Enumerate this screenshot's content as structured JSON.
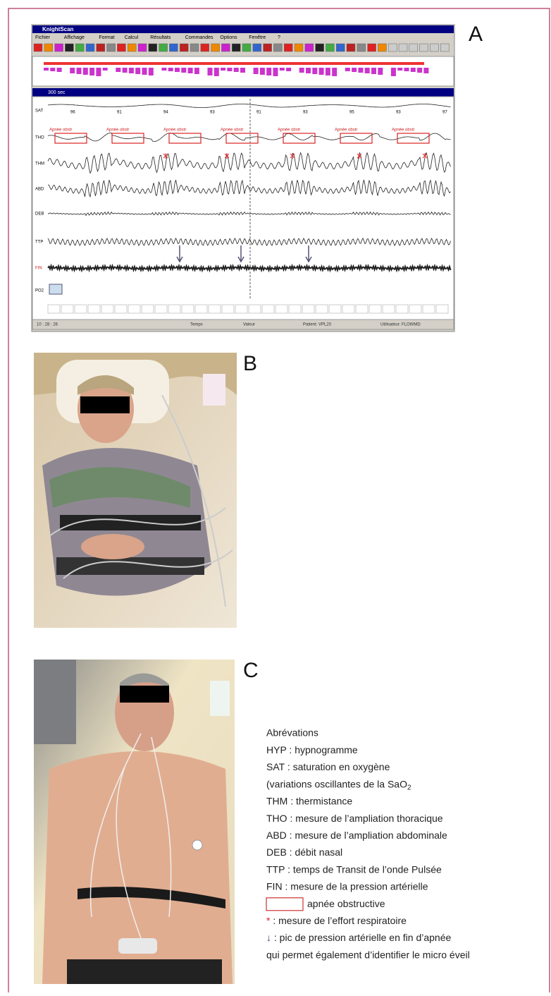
{
  "panels": [
    {
      "label": "A"
    },
    {
      "label": "B"
    },
    {
      "label": "C"
    }
  ],
  "screenshot": {
    "app_title": "KnightScan",
    "menu": [
      "Fichier",
      "Affichage",
      "Format",
      "Calcul",
      "Résultats",
      "Commandes",
      "Options",
      "Fenêtre",
      "?"
    ],
    "window_title": "300 sec",
    "channels": [
      "SAT",
      "THO",
      "THM",
      "ABD",
      "DEB",
      "TTP",
      "FIN",
      "PO2"
    ],
    "sat_values": [
      "96",
      "91",
      "94",
      "93",
      "91",
      "93",
      "95",
      "93",
      "97"
    ],
    "events": [
      "Apnée obstr",
      "Apnée obstr",
      "Apnée obstr",
      "Apnée obstr",
      "Apnée obstr",
      "Apnée obstr",
      "Apnée obstr"
    ],
    "status": [
      "10 : 28 : 26",
      "Temps",
      "Valeur",
      "Patient: VPL20",
      "Utilisateur: FLOWMD"
    ]
  },
  "legend": {
    "title": "Abrévations",
    "items": [
      {
        "text": "HYP : hypnogramme"
      },
      {
        "text": "SAT : saturation en oxygène"
      },
      {
        "text": "(variations oscillantes de la SaO",
        "sub": "2"
      },
      {
        "text": "THM : thermistance"
      },
      {
        "text": "THO : mesure de l’ampliation thoracique"
      },
      {
        "text": "ABD : mesure de l’ampliation abdominale"
      },
      {
        "text": "DEB : débit nasal"
      },
      {
        "text": "TTP : temps de Transit de l’onde Pulsée"
      },
      {
        "text": "FIN : mesure de la pression artérielle"
      },
      {
        "text": "apnée obstructive"
      },
      {
        "symbol": "*",
        "text": " : mesure de l’effort respiratoire"
      },
      {
        "symbol": "↓",
        "text": " : pic de pression artérielle en fin d’apnée"
      },
      {
        "text": "qui permet également d’identifier le micro éveil"
      }
    ]
  }
}
